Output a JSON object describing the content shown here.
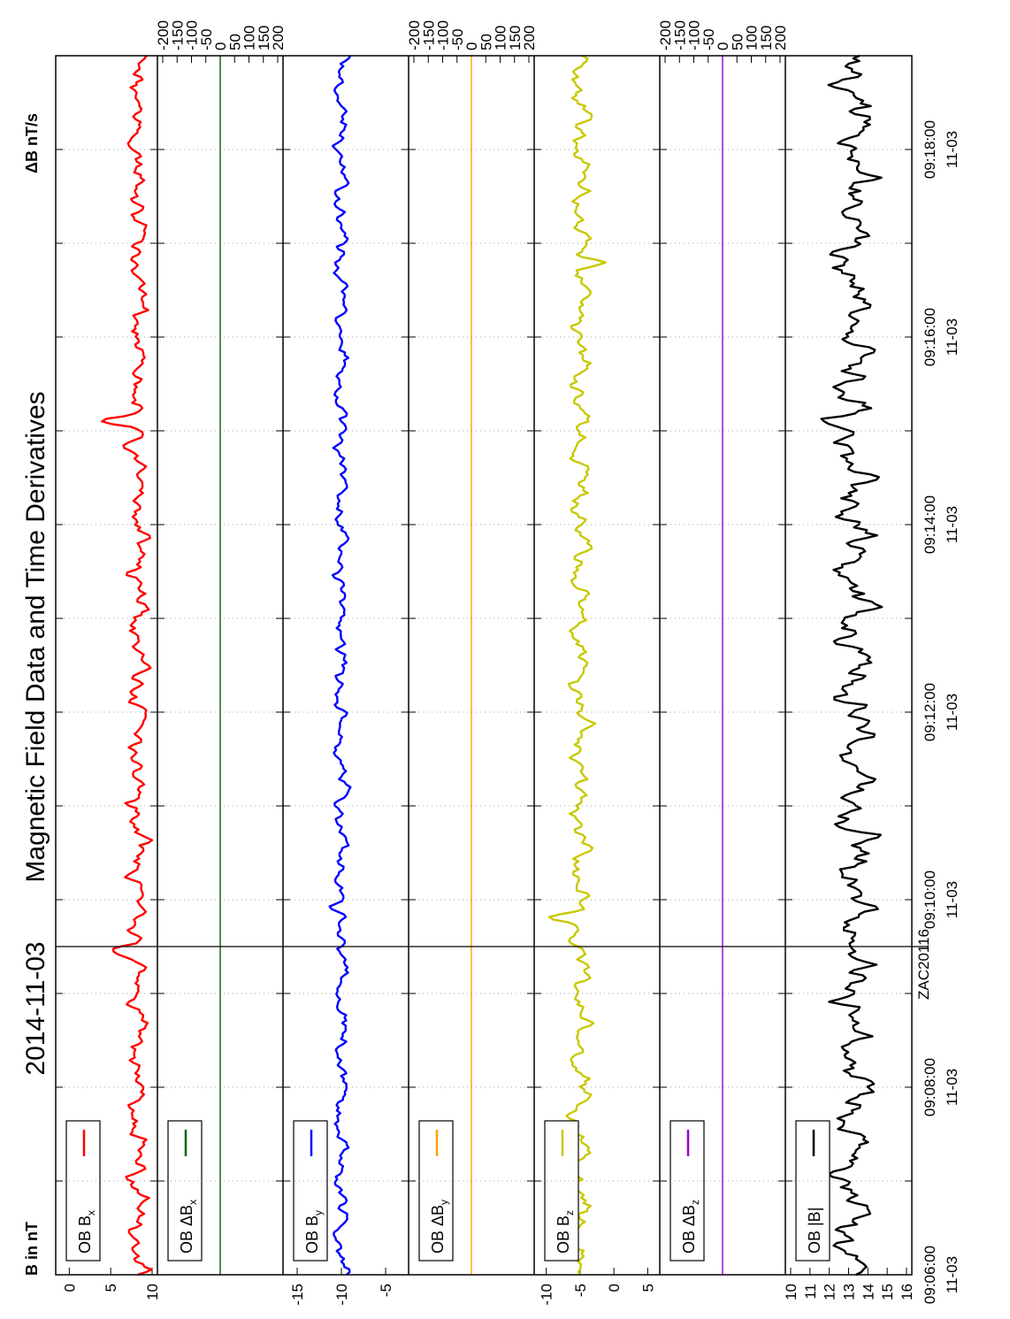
{
  "title": "Magnetic Field Data and Time Derivatives",
  "date": "2014-11-03",
  "left_unit": "B in nT",
  "right_unit": "ΔB nT/s",
  "watermark": "ZAC20116",
  "colors": {
    "bx": "#ff0000",
    "dbx": "#006400",
    "by": "#0000ff",
    "dby": "#ffa500",
    "bz": "#c8c800",
    "dbz": "#9400d3",
    "bmag": "#000000"
  },
  "chart_data": {
    "type": "line",
    "orientation": "rotated-90-clockwise",
    "x_axis": {
      "range": [
        "09:06:00",
        "09:19:00"
      ],
      "ticks": [
        {
          "time": "09:06:00",
          "date": "11-03"
        },
        {
          "time": "09:08:00",
          "date": "11-03"
        },
        {
          "time": "09:10:00",
          "date": "11-03"
        },
        {
          "time": "09:12:00",
          "date": "11-03"
        },
        {
          "time": "09:14:00",
          "date": "11-03"
        },
        {
          "time": "09:16:00",
          "date": "11-03"
        },
        {
          "time": "09:18:00",
          "date": "11-03"
        }
      ],
      "minor_tick_interval_min": 1,
      "grid": true
    },
    "cursor_time": "09:09:30",
    "panels": [
      {
        "id": "bx",
        "legend": "OB B",
        "sub": "x",
        "delta": false,
        "ylim": [
          -1,
          10
        ],
        "left_ticks": [
          "10",
          "5",
          "0"
        ],
        "series": {
          "center": 8.3,
          "amp": 1.1,
          "seed": 11,
          "spikes": [
            {
              "t": 9.45,
              "v": 5.2
            },
            {
              "t": 15.1,
              "v": 3.8
            }
          ]
        }
      },
      {
        "id": "dbx",
        "legend": "OB ΔB",
        "sub": "x",
        "delta": true,
        "ylim": [
          -200,
          200
        ],
        "right_ticks": [
          "200",
          "150",
          "100",
          "50",
          "0",
          "-50",
          "-100",
          "-150",
          "-200"
        ],
        "value": 0
      },
      {
        "id": "by",
        "legend": "OB B",
        "sub": "y",
        "delta": false,
        "ylim": [
          -16,
          -3
        ],
        "left_ticks": [
          "-5",
          "-10",
          "-15"
        ],
        "series": {
          "center": -10.0,
          "amp": 0.7,
          "seed": 23,
          "spikes": [
            {
              "t": 9.9,
              "v": -11.4
            }
          ]
        }
      },
      {
        "id": "dby",
        "legend": "OB ΔB",
        "sub": "y",
        "delta": true,
        "ylim": [
          -200,
          200
        ],
        "right_ticks": [
          "200",
          "150",
          "100",
          "50",
          "0",
          "-50",
          "-100",
          "-150",
          "-200"
        ],
        "value": 0
      },
      {
        "id": "bz",
        "legend": "OB B",
        "sub": "z",
        "delta": false,
        "ylim": [
          -11,
          6
        ],
        "left_ticks": [
          "5",
          "0",
          "-5",
          "-10"
        ],
        "series": {
          "center": -5.0,
          "amp": 1.3,
          "seed": 37,
          "spikes": [
            {
              "t": 9.8,
              "v": -9.0
            },
            {
              "t": 16.8,
              "v": -1.5
            }
          ]
        }
      },
      {
        "id": "dbz",
        "legend": "OB ΔB",
        "sub": "z",
        "delta": true,
        "ylim": [
          -200,
          200
        ],
        "right_ticks": [
          "200",
          "150",
          "100",
          "50",
          "0",
          "-50",
          "-100",
          "-150",
          "-200"
        ],
        "value": 0
      },
      {
        "id": "bmag",
        "legend": "OB |B|",
        "sub": "",
        "delta": false,
        "ylim": [
          10,
          16
        ],
        "left_ticks": [
          "16",
          "15",
          "14",
          "13",
          "12",
          "11",
          "10"
        ],
        "series": {
          "center": 13.3,
          "amp": 0.9,
          "seed": 53,
          "spikes": [
            {
              "t": 15.1,
              "v": 11.1
            },
            {
              "t": 16.9,
              "v": 11.7
            }
          ]
        }
      }
    ]
  }
}
